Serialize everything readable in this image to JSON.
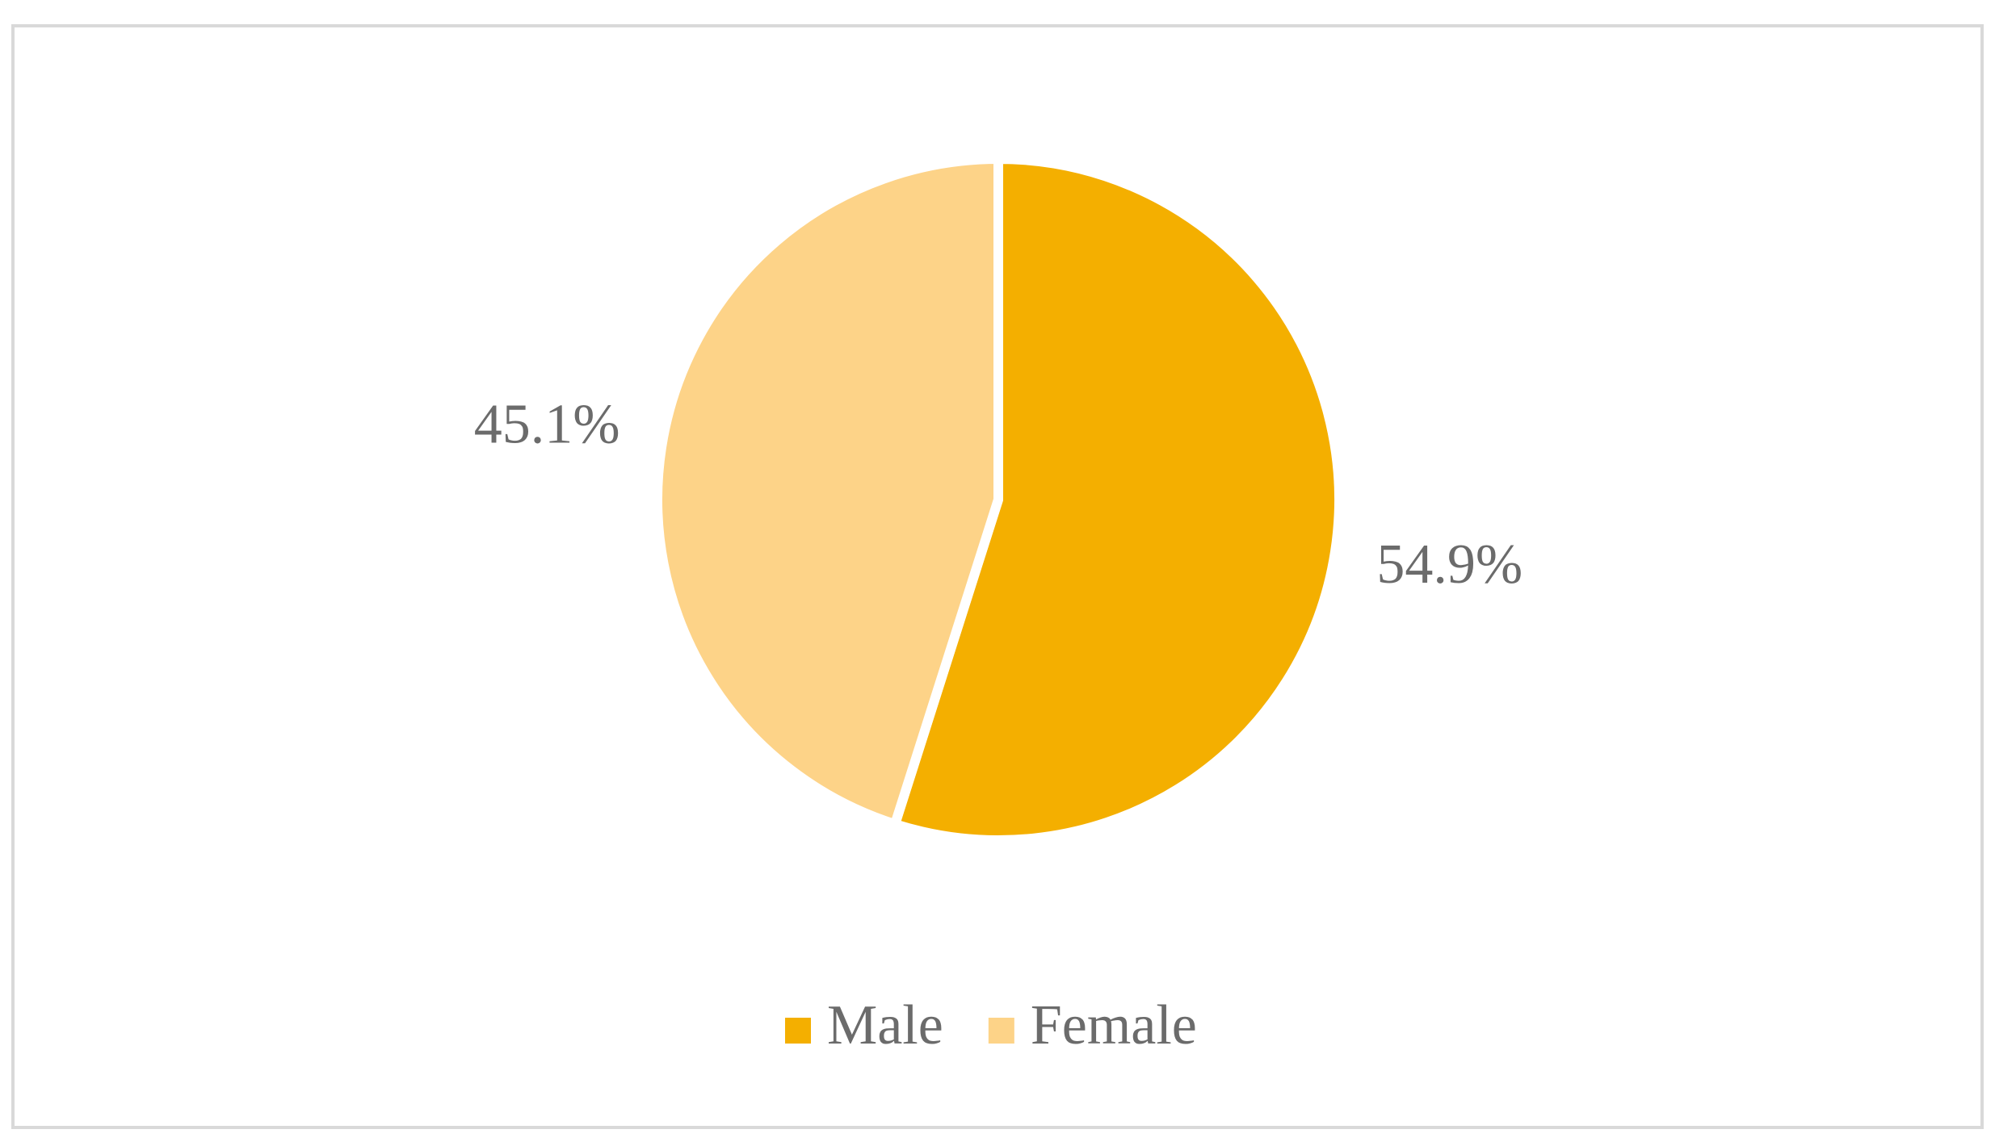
{
  "chart_data": {
    "type": "pie",
    "categories": [
      "Male",
      "Female"
    ],
    "values": [
      54.9,
      45.1
    ],
    "value_labels": [
      "54.9%",
      "45.1%"
    ],
    "colors": [
      "#F4AF00",
      "#FDD388"
    ],
    "legend": "bottom"
  }
}
